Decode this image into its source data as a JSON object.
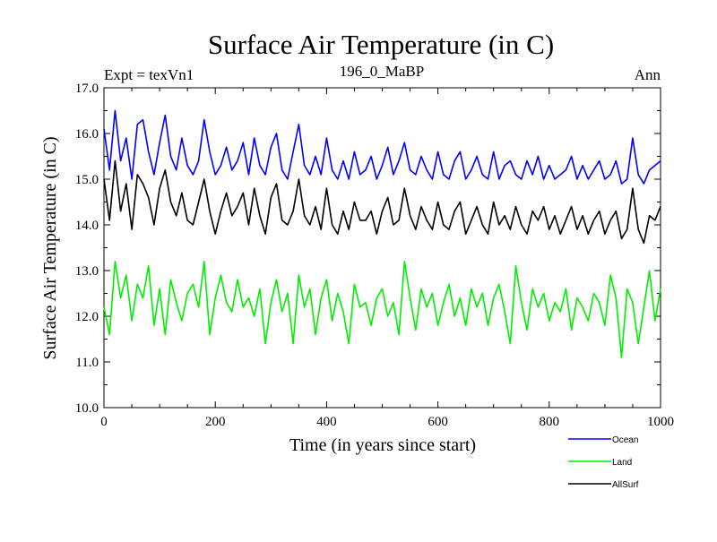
{
  "chart_data": {
    "type": "line",
    "title": "Surface Air Temperature (in C)",
    "subtitle_left": "Expt = texVn1",
    "subtitle_center": "196_0_MaBP",
    "subtitle_right": "Ann",
    "xlabel": "Time (in years since start)",
    "ylabel": "Surface Air Temperature (in C)",
    "xlim": [
      0,
      1000
    ],
    "ylim": [
      10.0,
      17.0
    ],
    "xticks": [
      "0",
      "200",
      "400",
      "600",
      "800",
      "1000"
    ],
    "yticks": [
      "10.0",
      "11.0",
      "12.0",
      "13.0",
      "14.0",
      "15.0",
      "16.0",
      "17.0"
    ],
    "grid": false,
    "legend_position": "bottom-right",
    "series": [
      {
        "name": "Ocean",
        "color": "#0000ff",
        "x": [
          0,
          10,
          20,
          30,
          40,
          50,
          60,
          70,
          80,
          90,
          100,
          110,
          120,
          130,
          140,
          150,
          160,
          170,
          180,
          190,
          200,
          210,
          220,
          230,
          240,
          250,
          260,
          270,
          280,
          290,
          300,
          310,
          320,
          330,
          340,
          350,
          360,
          370,
          380,
          390,
          400,
          410,
          420,
          430,
          440,
          450,
          460,
          470,
          480,
          490,
          500,
          510,
          520,
          530,
          540,
          550,
          560,
          570,
          580,
          590,
          600,
          610,
          620,
          630,
          640,
          650,
          660,
          670,
          680,
          690,
          700,
          710,
          720,
          730,
          740,
          750,
          760,
          770,
          780,
          790,
          800,
          810,
          820,
          830,
          840,
          850,
          860,
          870,
          880,
          890,
          900,
          910,
          920,
          930,
          940,
          950,
          960,
          970,
          980,
          990,
          1000
        ],
        "values": [
          16.1,
          15.2,
          16.5,
          15.4,
          15.9,
          15.0,
          16.2,
          16.3,
          15.6,
          15.1,
          15.8,
          16.4,
          15.5,
          15.2,
          15.9,
          15.3,
          15.1,
          15.4,
          16.3,
          15.6,
          15.1,
          15.3,
          15.7,
          15.2,
          15.4,
          15.8,
          15.1,
          15.9,
          15.3,
          15.1,
          15.7,
          16.0,
          15.2,
          15.0,
          15.6,
          16.2,
          15.3,
          15.1,
          15.5,
          15.1,
          15.9,
          15.2,
          15.0,
          15.4,
          15.0,
          15.6,
          15.1,
          15.2,
          15.5,
          15.0,
          15.3,
          15.7,
          15.1,
          15.4,
          15.8,
          15.2,
          15.1,
          15.5,
          15.2,
          15.0,
          15.6,
          15.1,
          15.0,
          15.4,
          15.6,
          15.0,
          15.2,
          15.5,
          15.1,
          15.0,
          15.6,
          15.0,
          15.3,
          15.4,
          15.1,
          15.0,
          15.4,
          15.1,
          15.5,
          15.0,
          15.3,
          15.0,
          15.1,
          15.2,
          15.5,
          15.0,
          15.3,
          15.0,
          15.2,
          15.4,
          15.0,
          15.1,
          15.4,
          14.9,
          15.0,
          15.9,
          15.1,
          14.9,
          15.2,
          15.3,
          15.4
        ]
      },
      {
        "name": "Land",
        "color": "#00ee00",
        "x": [
          0,
          10,
          20,
          30,
          40,
          50,
          60,
          70,
          80,
          90,
          100,
          110,
          120,
          130,
          140,
          150,
          160,
          170,
          180,
          190,
          200,
          210,
          220,
          230,
          240,
          250,
          260,
          270,
          280,
          290,
          300,
          310,
          320,
          330,
          340,
          350,
          360,
          370,
          380,
          390,
          400,
          410,
          420,
          430,
          440,
          450,
          460,
          470,
          480,
          490,
          500,
          510,
          520,
          530,
          540,
          550,
          560,
          570,
          580,
          590,
          600,
          610,
          620,
          630,
          640,
          650,
          660,
          670,
          680,
          690,
          700,
          710,
          720,
          730,
          740,
          750,
          760,
          770,
          780,
          790,
          800,
          810,
          820,
          830,
          840,
          850,
          860,
          870,
          880,
          890,
          900,
          910,
          920,
          930,
          940,
          950,
          960,
          970,
          980,
          990,
          1000
        ],
        "values": [
          12.2,
          11.6,
          13.2,
          12.4,
          12.9,
          11.9,
          12.7,
          12.4,
          13.1,
          11.8,
          12.6,
          11.6,
          12.8,
          12.3,
          11.9,
          12.5,
          12.7,
          12.2,
          13.2,
          11.6,
          12.4,
          12.9,
          12.3,
          12.1,
          12.8,
          12.2,
          12.4,
          12.0,
          12.6,
          11.4,
          12.3,
          12.8,
          12.1,
          12.5,
          11.4,
          12.9,
          12.2,
          12.6,
          11.6,
          12.4,
          12.8,
          11.9,
          12.5,
          12.1,
          11.4,
          12.7,
          12.2,
          12.3,
          11.8,
          12.4,
          12.6,
          12.0,
          12.3,
          11.6,
          13.2,
          12.4,
          11.7,
          12.6,
          12.2,
          12.5,
          11.8,
          12.3,
          12.7,
          12.0,
          12.4,
          11.8,
          12.6,
          12.2,
          12.5,
          11.8,
          12.4,
          12.7,
          12.1,
          11.4,
          13.1,
          12.3,
          11.7,
          12.6,
          12.2,
          12.5,
          11.9,
          12.3,
          12.1,
          12.6,
          11.7,
          12.4,
          12.2,
          11.9,
          12.5,
          12.3,
          11.8,
          12.9,
          12.4,
          11.1,
          12.6,
          12.3,
          11.4,
          12.2,
          13.0,
          11.9,
          12.6
        ]
      },
      {
        "name": "AllSurf",
        "color": "#000000",
        "x": [
          0,
          10,
          20,
          30,
          40,
          50,
          60,
          70,
          80,
          90,
          100,
          110,
          120,
          130,
          140,
          150,
          160,
          170,
          180,
          190,
          200,
          210,
          220,
          230,
          240,
          250,
          260,
          270,
          280,
          290,
          300,
          310,
          320,
          330,
          340,
          350,
          360,
          370,
          380,
          390,
          400,
          410,
          420,
          430,
          440,
          450,
          460,
          470,
          480,
          490,
          500,
          510,
          520,
          530,
          540,
          550,
          560,
          570,
          580,
          590,
          600,
          610,
          620,
          630,
          640,
          650,
          660,
          670,
          680,
          690,
          700,
          710,
          720,
          730,
          740,
          750,
          760,
          770,
          780,
          790,
          800,
          810,
          820,
          830,
          840,
          850,
          860,
          870,
          880,
          890,
          900,
          910,
          920,
          930,
          940,
          950,
          960,
          970,
          980,
          990,
          1000
        ],
        "values": [
          15.0,
          14.1,
          15.4,
          14.3,
          14.9,
          13.9,
          15.1,
          14.9,
          14.6,
          14.0,
          14.8,
          15.2,
          14.5,
          14.2,
          14.7,
          14.1,
          14.0,
          14.5,
          15.0,
          14.3,
          13.8,
          14.3,
          14.7,
          14.2,
          14.4,
          14.7,
          14.0,
          14.8,
          14.2,
          13.8,
          14.6,
          14.9,
          14.1,
          14.0,
          14.3,
          15.0,
          14.2,
          14.0,
          14.4,
          13.9,
          14.8,
          14.0,
          13.8,
          14.3,
          13.9,
          14.5,
          14.1,
          14.1,
          14.3,
          13.8,
          14.3,
          14.6,
          14.0,
          14.1,
          14.8,
          14.2,
          13.9,
          14.4,
          14.1,
          13.9,
          14.5,
          14.0,
          13.9,
          14.3,
          14.5,
          13.8,
          14.1,
          14.4,
          14.0,
          13.8,
          14.5,
          14.0,
          14.2,
          13.9,
          14.4,
          14.0,
          13.8,
          14.3,
          14.1,
          14.4,
          13.9,
          14.2,
          13.8,
          14.1,
          14.4,
          13.9,
          14.2,
          13.8,
          14.1,
          14.3,
          13.8,
          14.1,
          14.3,
          13.7,
          13.9,
          14.8,
          13.9,
          13.6,
          14.2,
          14.1,
          14.4
        ]
      }
    ]
  }
}
